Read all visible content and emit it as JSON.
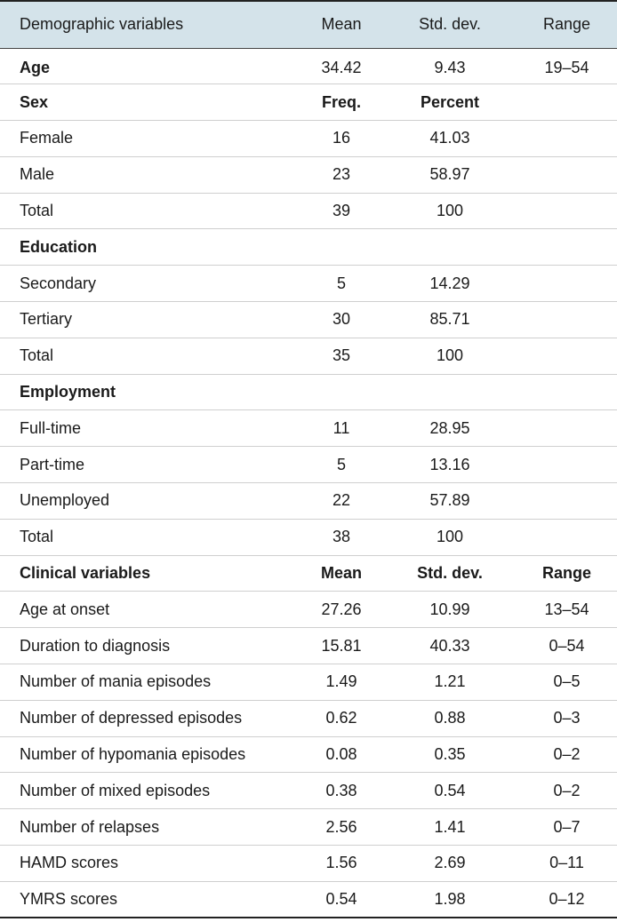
{
  "header": {
    "col0": "Demographic variables",
    "col1": "Mean",
    "col2": "Std. dev.",
    "col3": "Range"
  },
  "rows": [
    {
      "c0": "Age",
      "c1": "34.42",
      "c2": "9.43",
      "c3": "19–54"
    },
    {
      "c0": "Sex",
      "c1": "Freq.",
      "c2": "Percent",
      "c3": ""
    },
    {
      "c0": "Female",
      "c1": "16",
      "c2": "41.03",
      "c3": ""
    },
    {
      "c0": "Male",
      "c1": "23",
      "c2": "58.97",
      "c3": ""
    },
    {
      "c0": "Total",
      "c1": "39",
      "c2": "100",
      "c3": ""
    },
    {
      "c0": "Education",
      "c1": "",
      "c2": "",
      "c3": ""
    },
    {
      "c0": "Secondary",
      "c1": "5",
      "c2": "14.29",
      "c3": ""
    },
    {
      "c0": "Tertiary",
      "c1": "30",
      "c2": "85.71",
      "c3": ""
    },
    {
      "c0": "Total",
      "c1": "35",
      "c2": "100",
      "c3": ""
    },
    {
      "c0": "Employment",
      "c1": "",
      "c2": "",
      "c3": ""
    },
    {
      "c0": "Full-time",
      "c1": "11",
      "c2": "28.95",
      "c3": ""
    },
    {
      "c0": "Part-time",
      "c1": "5",
      "c2": "13.16",
      "c3": ""
    },
    {
      "c0": "Unemployed",
      "c1": "22",
      "c2": "57.89",
      "c3": ""
    },
    {
      "c0": "Total",
      "c1": "38",
      "c2": "100",
      "c3": ""
    },
    {
      "c0": "Clinical variables",
      "c1": "Mean",
      "c2": "Std. dev.",
      "c3": "Range"
    },
    {
      "c0": "Age at onset",
      "c1": "27.26",
      "c2": "10.99",
      "c3": "13–54"
    },
    {
      "c0": "Duration to diagnosis",
      "c1": "15.81",
      "c2": "40.33",
      "c3": "0–54"
    },
    {
      "c0": "Number of mania episodes",
      "c1": "1.49",
      "c2": "1.21",
      "c3": "0–5"
    },
    {
      "c0": "Number of depressed episodes",
      "c1": "0.62",
      "c2": "0.88",
      "c3": "0–3"
    },
    {
      "c0": "Number of hypomania episodes",
      "c1": "0.08",
      "c2": "0.35",
      "c3": "0–2"
    },
    {
      "c0": "Number of mixed episodes",
      "c1": "0.38",
      "c2": "0.54",
      "c3": "0–2"
    },
    {
      "c0": "Number of relapses",
      "c1": "2.56",
      "c2": "1.41",
      "c3": "0–7"
    },
    {
      "c0": "HAMD scores",
      "c1": "1.56",
      "c2": "2.69",
      "c3": "0–11"
    },
    {
      "c0": "YMRS scores",
      "c1": "0.54",
      "c2": "1.98",
      "c3": "0–12"
    }
  ]
}
